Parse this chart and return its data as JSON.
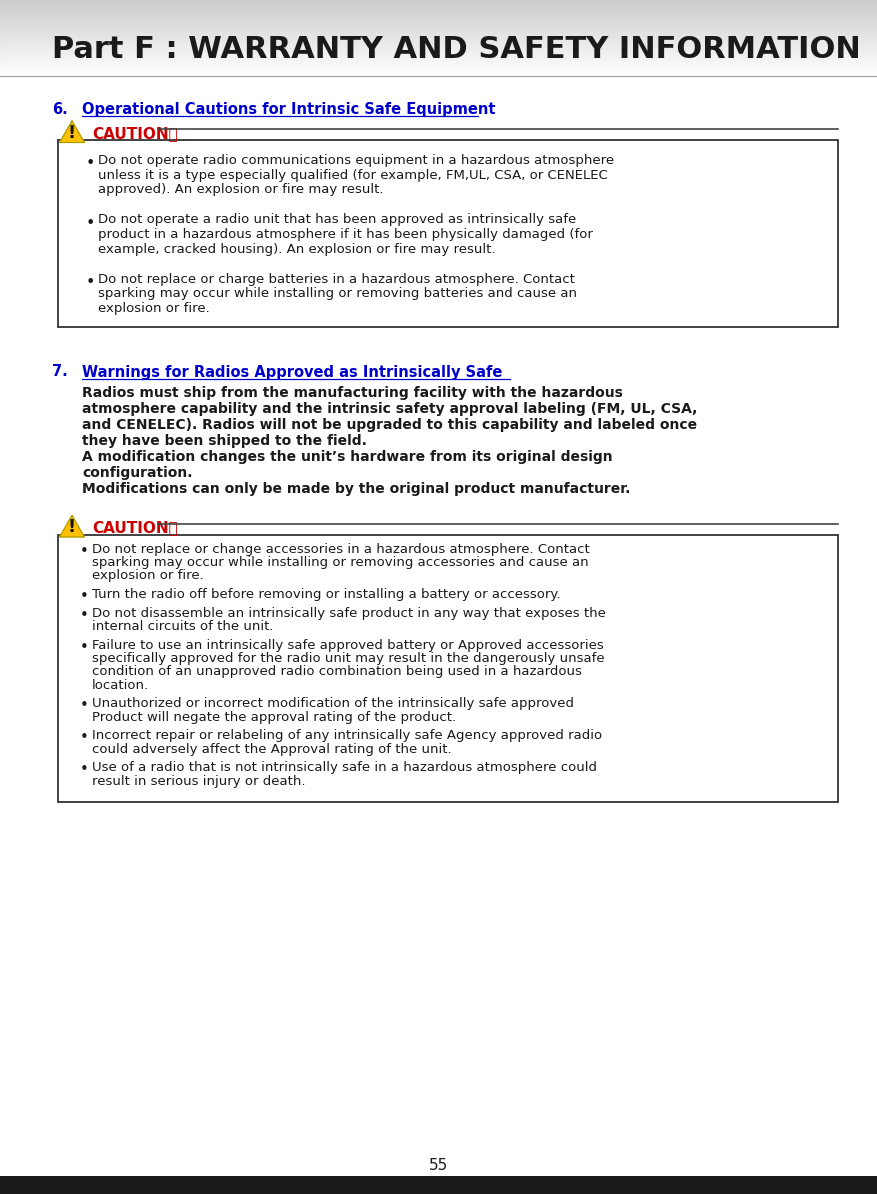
{
  "title": "Part F : WARRANTY AND SAFETY INFORMATION",
  "title_color": "#1a1a1a",
  "section6_number": "6.",
  "section6_title": "Operational Cautions for Intrinsic Safe Equipment",
  "link_color": "#0000cc",
  "caution_color": "#cc0000",
  "caution_box1_items": [
    "Do not operate radio communications equipment in a hazardous atmosphere\nunless it is a type especially qualified (for example, FM,UL, CSA, or CENELEC\napproved). An explosion or fire may result.",
    "Do not operate a radio unit that has been approved as intrinsically safe\nproduct in a hazardous atmosphere if it has been physically damaged (for\nexample, cracked housing). An explosion or fire may result.",
    "Do not replace or charge batteries in a hazardous atmosphere. Contact\nsparking may occur while installing or removing batteries and cause an\nexplosion or fire."
  ],
  "section7_number": "7.",
  "section7_title": "Warnings for Radios Approved as Intrinsically Safe",
  "section7_body_lines": [
    "Radios must ship from the manufacturing facility with the hazardous",
    "atmosphere capability and the intrinsic safety approval labeling (FM, UL, CSA,",
    "and CENELEC). Radios will not be upgraded to this capability and labeled once",
    "they have been shipped to the field.",
    "A modification changes the unit’s hardware from its original design",
    "configuration.",
    "Modifications can only be made by the original product manufacturer."
  ],
  "caution_box2_items": [
    "Do not replace or change accessories in a hazardous atmosphere. Contact\nsparking may occur while installing or removing accessories and cause an\nexplosion or fire.",
    "Turn the radio off before removing or installing a battery or accessory.",
    "Do not disassemble an intrinsically safe product in any way that exposes the\ninternal circuits of the unit.",
    "Failure to use an intrinsically safe approved battery or Approved accessories\nspecifically approved for the radio unit may result in the dangerously unsafe\ncondition of an unapproved radio combination being used in a hazardous\nlocation.",
    "Unauthorized or incorrect modification of the intrinsically safe approved\nProduct will negate the approval rating of the product.",
    "Incorrect repair or relabeling of any intrinsically safe Agency approved radio\ncould adversely affect the Approval rating of the unit.",
    "Use of a radio that is not intrinsically safe in a hazardous atmosphere could\nresult in serious injury or death."
  ],
  "page_number": "55",
  "bg_color": "#ffffff",
  "text_color": "#1a1a1a",
  "body_font_size": 9.5,
  "section_font_size": 10.5,
  "title_font_size": 22
}
